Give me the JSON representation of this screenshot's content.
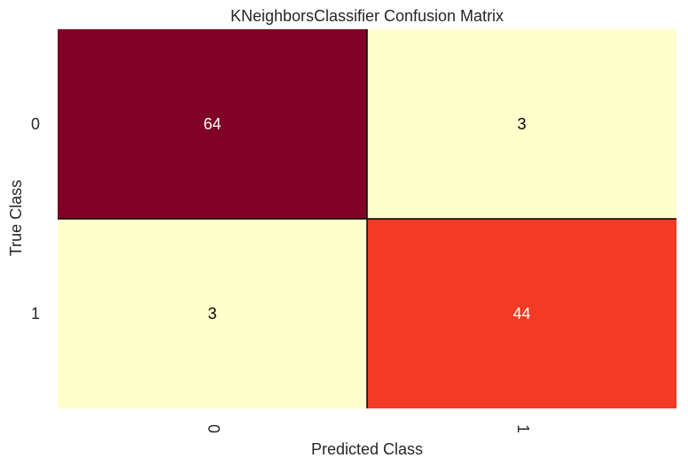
{
  "chart_data": {
    "type": "heatmap",
    "title": "KNeighborsClassifier Confusion Matrix",
    "xlabel": "Predicted Class",
    "ylabel": "True Class",
    "x_categories": [
      "0",
      "1"
    ],
    "y_categories": [
      "0",
      "1"
    ],
    "values": [
      [
        64,
        3
      ],
      [
        3,
        44
      ]
    ],
    "colormap": "YlOrRd",
    "grid": false,
    "legend": "none",
    "colors": {
      "low": "#ffffcc",
      "mid": "#fd8d3c",
      "high_mid": "#e31a1c",
      "high": "#800026",
      "text_dark": "#000000",
      "text_light": "#ffffff"
    }
  }
}
